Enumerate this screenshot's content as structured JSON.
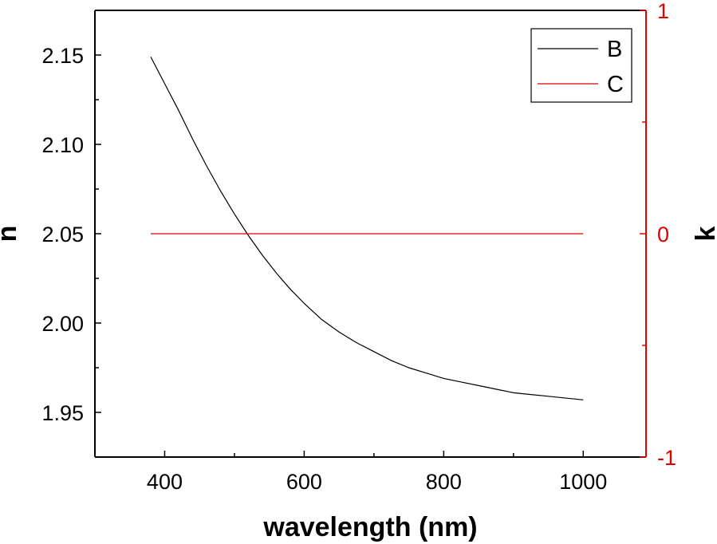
{
  "chart_data": {
    "type": "line",
    "xlabel": "wavelength (nm)",
    "ylabel": "n",
    "y2label": "k",
    "xlim": [
      300,
      1090
    ],
    "ylim": [
      1.925,
      2.175
    ],
    "y2lim": [
      -1,
      1
    ],
    "x_ticks": [
      400,
      600,
      800,
      1000
    ],
    "x_tick_labels": [
      "400",
      "600",
      "800",
      "1000"
    ],
    "y_ticks": [
      1.95,
      2.0,
      2.05,
      2.1,
      2.15
    ],
    "y_tick_labels": [
      "1.95",
      "2.00",
      "2.05",
      "2.10",
      "2.15"
    ],
    "y2_ticks": [
      -1,
      0,
      1
    ],
    "y2_tick_labels": [
      "-1",
      "0",
      "1"
    ],
    "grid": false,
    "legend_position": "top-right",
    "legend": [
      "B",
      "C"
    ],
    "series": [
      {
        "name": "B",
        "axis": "left",
        "color": "#000000",
        "x": [
          380,
          400,
          420,
          440,
          460,
          480,
          500,
          520,
          540,
          560,
          580,
          600,
          625,
          650,
          675,
          700,
          725,
          750,
          775,
          800,
          825,
          850,
          875,
          900,
          925,
          950,
          975,
          1000
        ],
        "y": [
          2.149,
          2.134,
          2.119,
          2.103,
          2.088,
          2.074,
          2.061,
          2.049,
          2.038,
          2.028,
          2.019,
          2.011,
          2.002,
          1.995,
          1.989,
          1.984,
          1.979,
          1.975,
          1.972,
          1.969,
          1.967,
          1.965,
          1.963,
          1.961,
          1.96,
          1.959,
          1.958,
          1.957
        ]
      },
      {
        "name": "C",
        "axis": "right",
        "color": "#e00000",
        "x": [
          380,
          1000
        ],
        "y": [
          0,
          0
        ]
      }
    ]
  }
}
